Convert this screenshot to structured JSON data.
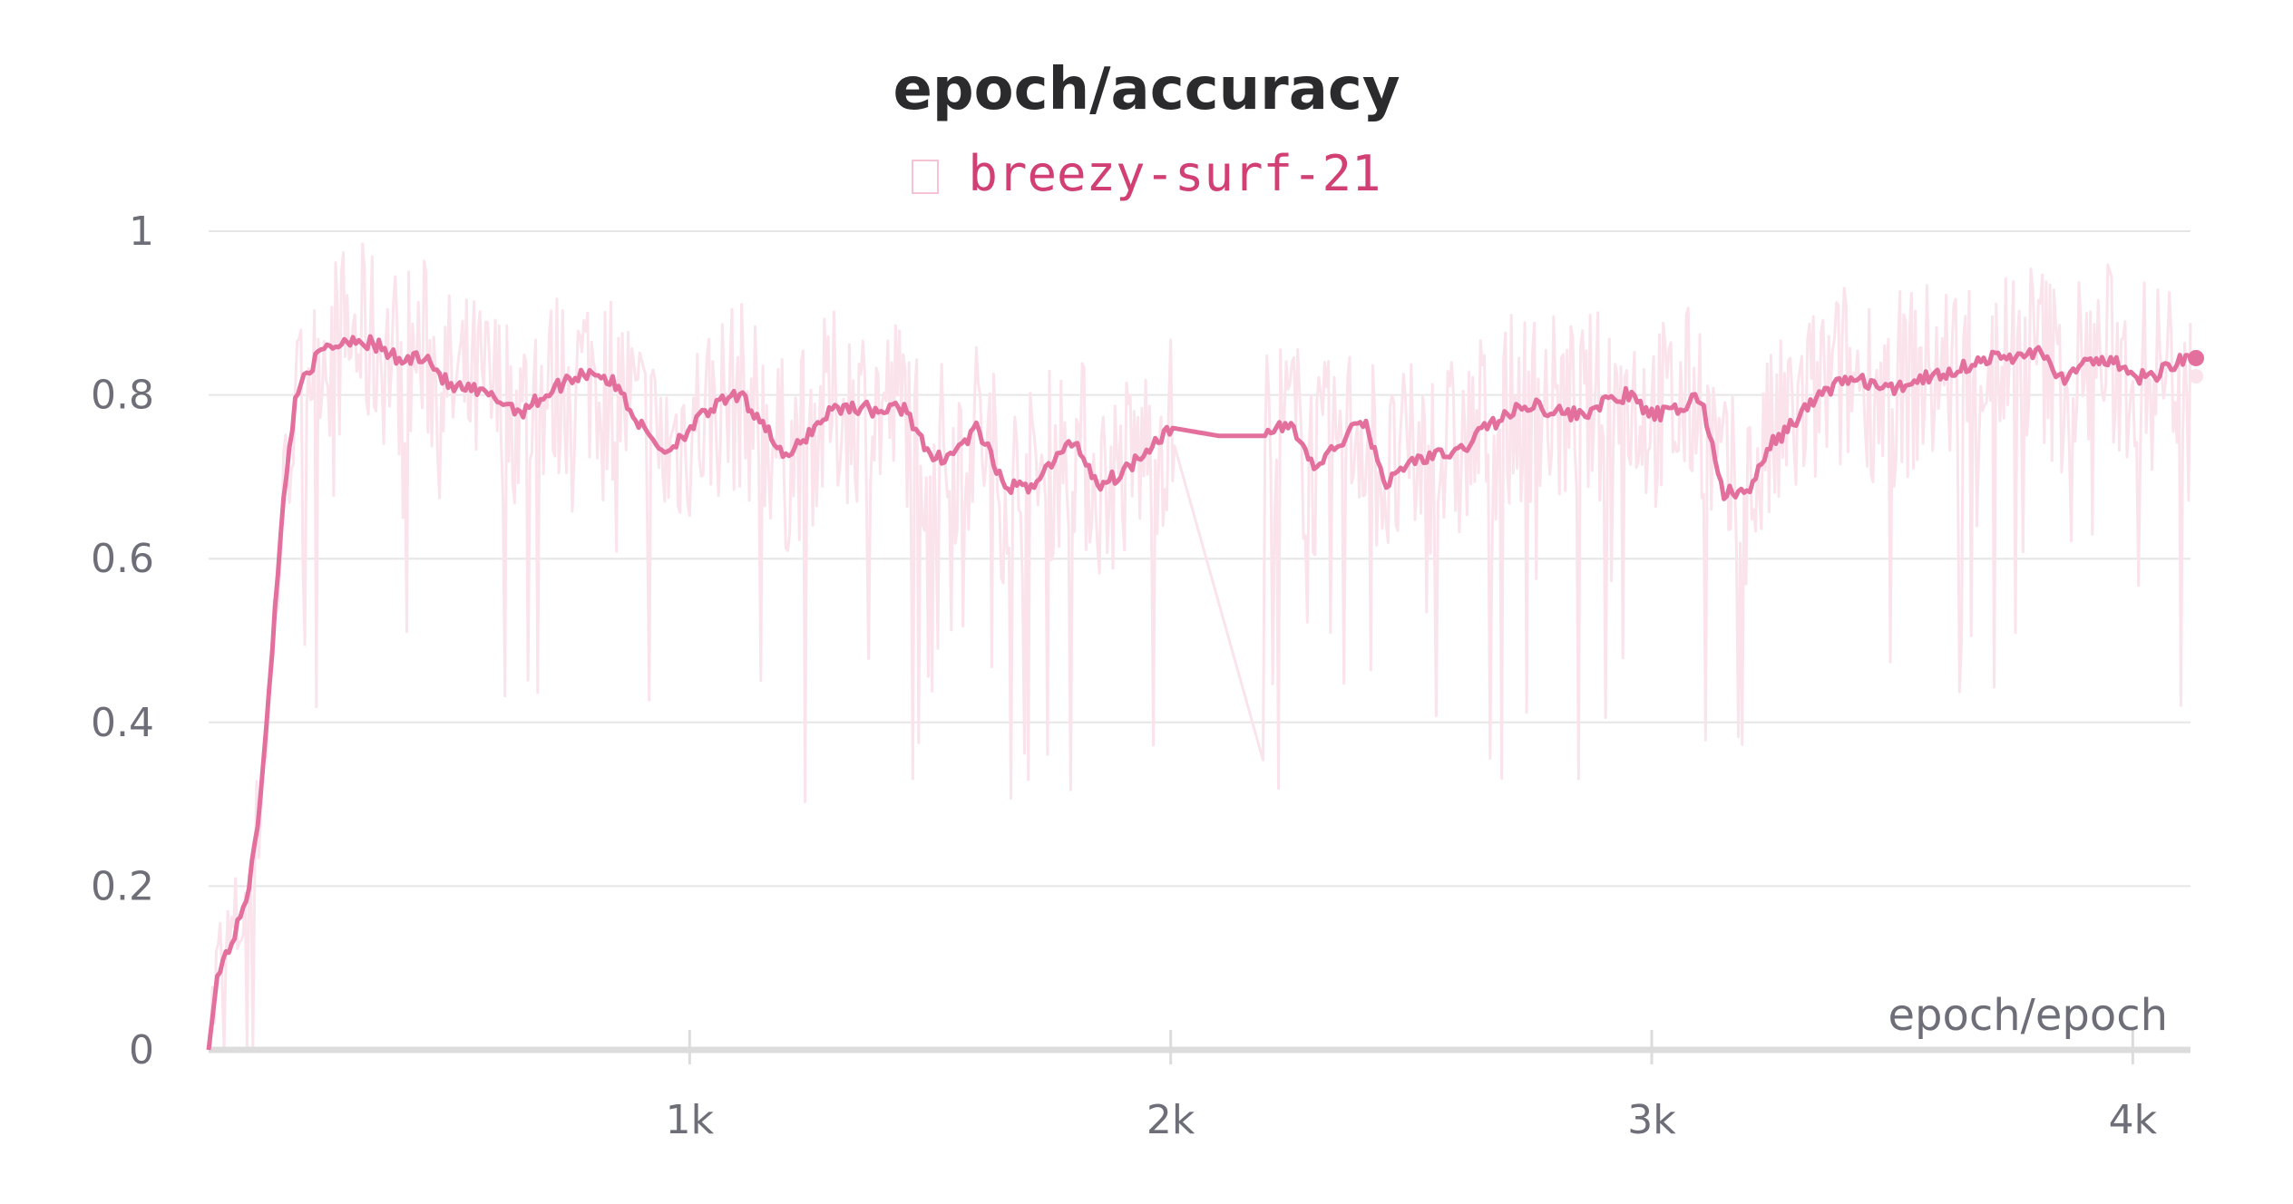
{
  "chart_data": {
    "type": "line",
    "title": "epoch/accuracy",
    "xlabel": "epoch/epoch",
    "ylabel": "",
    "xlim": [
      0,
      4120
    ],
    "ylim": [
      0,
      1
    ],
    "y_ticks": [
      "0",
      "0.2",
      "0.4",
      "0.6",
      "0.8",
      "1"
    ],
    "x_ticks": [
      "1k",
      "2k",
      "3k",
      "4k"
    ],
    "x_tick_values": [
      1000,
      2000,
      3000,
      4000
    ],
    "grid": true,
    "legend_position": "top-center",
    "colors": {
      "smoothed": "#e36f9d",
      "raw": "#fbe3ec",
      "grid": "#e6e6e6",
      "axis": "#dcdcdc"
    },
    "series": [
      {
        "name": "breezy-surf-21",
        "x": [
          0,
          20,
          40,
          60,
          80,
          100,
          120,
          140,
          160,
          180,
          200,
          220,
          240,
          260,
          280,
          300,
          350,
          400,
          450,
          500,
          550,
          600,
          650,
          700,
          750,
          800,
          850,
          900,
          950,
          1000,
          1050,
          1100,
          1150,
          1200,
          1250,
          1300,
          1350,
          1400,
          1450,
          1500,
          1550,
          1600,
          1650,
          1700,
          1750,
          1800,
          1850,
          1900,
          1950,
          2000,
          2100,
          2200,
          2250,
          2300,
          2350,
          2400,
          2450,
          2500,
          2550,
          2600,
          2650,
          2700,
          2750,
          2800,
          2850,
          2900,
          2950,
          3000,
          3050,
          3100,
          3150,
          3200,
          3250,
          3300,
          3350,
          3400,
          3450,
          3500,
          3550,
          3600,
          3650,
          3700,
          3750,
          3800,
          3850,
          3900,
          3950,
          4000,
          4050,
          4100,
          4120
        ],
        "y": [
          0.0,
          0.1,
          0.12,
          0.15,
          0.19,
          0.26,
          0.4,
          0.55,
          0.7,
          0.79,
          0.83,
          0.84,
          0.855,
          0.86,
          0.865,
          0.87,
          0.86,
          0.84,
          0.85,
          0.81,
          0.805,
          0.795,
          0.78,
          0.8,
          0.82,
          0.83,
          0.81,
          0.76,
          0.73,
          0.76,
          0.785,
          0.8,
          0.77,
          0.72,
          0.755,
          0.785,
          0.785,
          0.78,
          0.785,
          0.72,
          0.73,
          0.76,
          0.69,
          0.685,
          0.715,
          0.745,
          0.69,
          0.705,
          0.735,
          0.76,
          0.75,
          0.75,
          0.765,
          0.71,
          0.74,
          0.77,
          0.69,
          0.72,
          0.725,
          0.73,
          0.76,
          0.775,
          0.79,
          0.78,
          0.775,
          0.79,
          0.8,
          0.775,
          0.78,
          0.8,
          0.68,
          0.68,
          0.74,
          0.77,
          0.8,
          0.82,
          0.815,
          0.805,
          0.82,
          0.825,
          0.835,
          0.845,
          0.845,
          0.855,
          0.82,
          0.835,
          0.845,
          0.82,
          0.825,
          0.845,
          0.845
        ]
      }
    ]
  }
}
